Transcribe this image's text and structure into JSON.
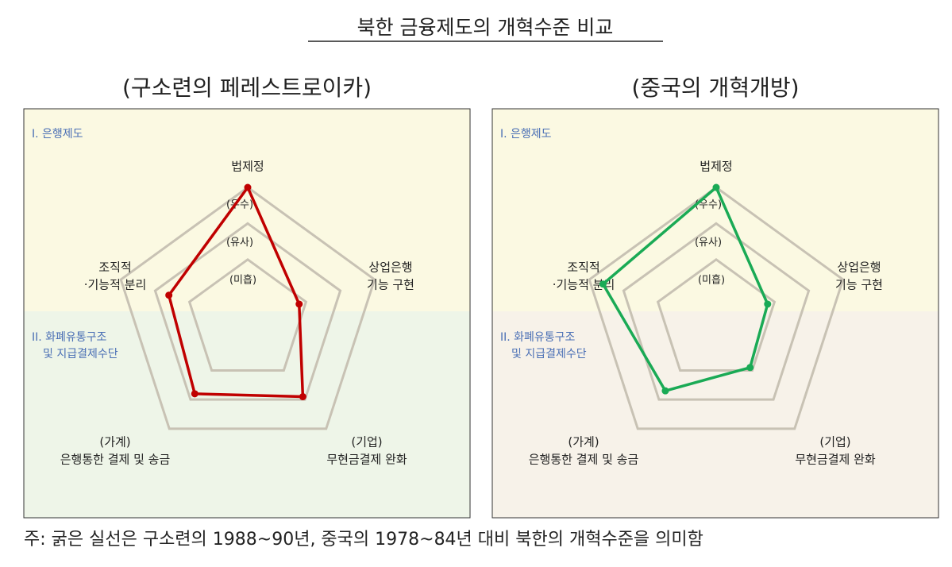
{
  "title": "북한 금융제도의 개혁수준 비교",
  "footnote": "주: 굵은 실선은 구소련의 1988~90년, 중국의 1978~84년 대비 북한의 개혁수준을 의미함",
  "chart_data": [
    {
      "type": "radar",
      "subtitle": "(구소련의 페레스트로이카)",
      "sections": [
        [
          "I. 은행제도"
        ],
        [
          "II. 화폐유통구조",
          "및 지급결제수단"
        ]
      ],
      "categories": [
        [
          "법제정"
        ],
        [
          "상업은행",
          "기능 구현"
        ],
        [
          "(기업)",
          "무현금결제 완화"
        ],
        [
          "(가계)",
          "은행통한 결제 및 송금"
        ],
        [
          "조직적",
          "·기능적 분리"
        ]
      ],
      "rlim": [
        -0.7,
        3
      ],
      "rticks": [
        {
          "value": 1,
          "label": "(미흡)"
        },
        {
          "value": 2,
          "label": "(유사)"
        },
        {
          "value": 3,
          "label": "(우수)"
        }
      ],
      "series": [
        {
          "color": "#c00000",
          "values": [
            3,
            0.8,
            1.9,
            1.8,
            1.6
          ]
        }
      ]
    },
    {
      "type": "radar",
      "subtitle": "(중국의 개혁개방)",
      "sections": [
        [
          "I. 은행제도"
        ],
        [
          "II. 화폐유통구조",
          "및 지급결제수단"
        ]
      ],
      "categories": [
        [
          "법제정"
        ],
        [
          "상업은행",
          "기능 구현"
        ],
        [
          "(기업)",
          "무현금결제 완화"
        ],
        [
          "(가계)",
          "은행통한 결제 및 송금"
        ],
        [
          "조직적",
          "·기능적 분리"
        ]
      ],
      "rlim": [
        -0.7,
        3
      ],
      "rticks": [
        {
          "value": 1,
          "label": "(미흡)"
        },
        {
          "value": 2,
          "label": "(유사)"
        },
        {
          "value": 3,
          "label": "(우수)"
        }
      ],
      "series": [
        {
          "color": "#1aaa55",
          "values": [
            3,
            0.8,
            0.9,
            1.7,
            2.6
          ]
        }
      ]
    }
  ]
}
